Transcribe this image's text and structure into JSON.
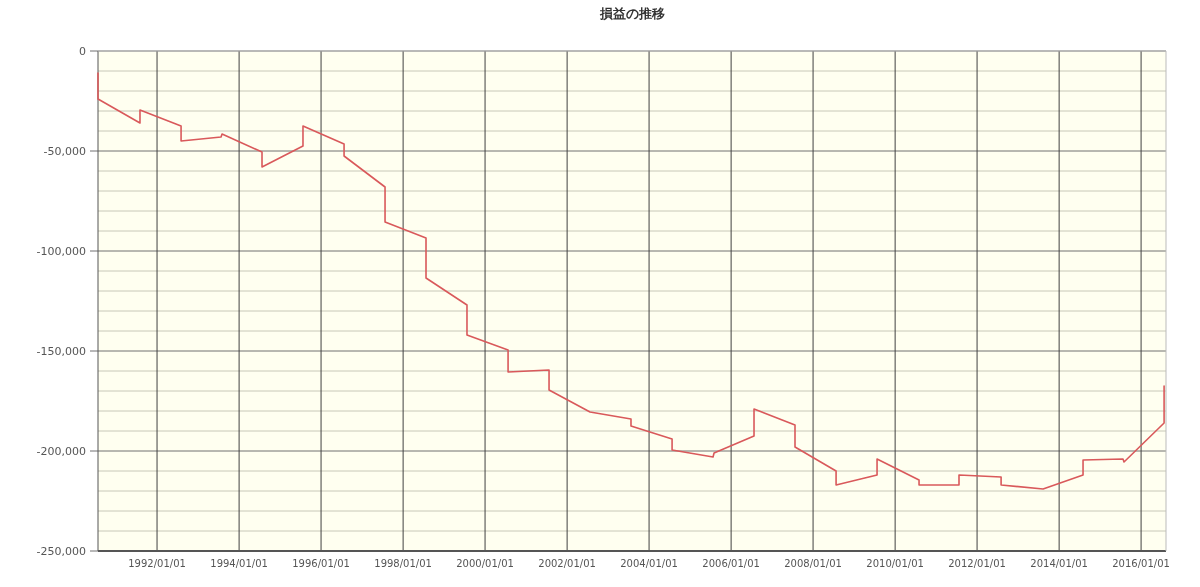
{
  "chart_data": {
    "type": "line",
    "title": "損益の推移",
    "xlim": [
      "1990-07-24",
      "2016-08-10"
    ],
    "xticks": [
      {
        "value": "1992-01-01",
        "label": "1992/01/01"
      },
      {
        "value": "1994-01-01",
        "label": "1994/01/01"
      },
      {
        "value": "1996-01-01",
        "label": "1996/01/01"
      },
      {
        "value": "1998-01-01",
        "label": "1998/01/01"
      },
      {
        "value": "2000-01-01",
        "label": "2000/01/01"
      },
      {
        "value": "2002-01-01",
        "label": "2002/01/01"
      },
      {
        "value": "2004-01-01",
        "label": "2004/01/01"
      },
      {
        "value": "2006-01-01",
        "label": "2006/01/01"
      },
      {
        "value": "2008-01-01",
        "label": "2008/01/01"
      },
      {
        "value": "2010-01-01",
        "label": "2010/01/01"
      },
      {
        "value": "2012-01-01",
        "label": "2012/01/01"
      },
      {
        "value": "2014-01-01",
        "label": "2014/01/01"
      },
      {
        "value": "2016-01-01",
        "label": "2016/01/01"
      }
    ],
    "ylim": [
      -250000,
      0
    ],
    "yticks": [
      {
        "value": -250000,
        "label": "-250,000"
      },
      {
        "value": -240000,
        "label": null
      },
      {
        "value": -230000,
        "label": null
      },
      {
        "value": -220000,
        "label": null
      },
      {
        "value": -210000,
        "label": null
      },
      {
        "value": -200000,
        "label": "-200,000"
      },
      {
        "value": -190000,
        "label": null
      },
      {
        "value": -180000,
        "label": null
      },
      {
        "value": -170000,
        "label": null
      },
      {
        "value": -160000,
        "label": null
      },
      {
        "value": -150000,
        "label": "-150,000"
      },
      {
        "value": -140000,
        "label": null
      },
      {
        "value": -130000,
        "label": null
      },
      {
        "value": -120000,
        "label": null
      },
      {
        "value": -110000,
        "label": null
      },
      {
        "value": -100000,
        "label": "-100,000"
      },
      {
        "value": -90000,
        "label": null
      },
      {
        "value": -80000,
        "label": null
      },
      {
        "value": -70000,
        "label": null
      },
      {
        "value": -60000,
        "label": null
      },
      {
        "value": -50000,
        "label": "-50,000"
      },
      {
        "value": -40000,
        "label": null
      },
      {
        "value": -30000,
        "label": null
      },
      {
        "value": -20000,
        "label": null
      },
      {
        "value": -10000,
        "label": null
      },
      0
    ],
    "grid": true,
    "series": [
      {
        "color": "#d9595b",
        "x": [
          "1990-07-24",
          "1990-07-24",
          "1991-08-02",
          "1991-08-02",
          "1992-08-02",
          "1992-08-02",
          "1993-07-24",
          "1993-08-02",
          "1994-07-24",
          "1994-07-24",
          "1995-07-24",
          "1995-07-24",
          "1996-07-24",
          "1996-07-24",
          "1997-07-24",
          "1997-07-24",
          "1998-07-24",
          "1998-07-24",
          "1999-07-24",
          "1999-07-24",
          "2000-07-24",
          "2000-07-24",
          "2001-07-24",
          "2001-07-24",
          "2002-07-24",
          "2003-07-24",
          "2003-07-24",
          "2004-07-24",
          "2004-07-24",
          "2005-07-24",
          "2005-08-02",
          "2006-07-24",
          "2006-07-24",
          "2007-07-24",
          "2007-07-24",
          "2008-07-24",
          "2008-07-24",
          "2009-07-24",
          "2009-07-24",
          "2010-08-02",
          "2010-08-02",
          "2011-07-24",
          "2011-07-24",
          "2012-08-02",
          "2012-08-02",
          "2013-08-11",
          "2014-08-02",
          "2014-08-02",
          "2015-07-24",
          "2015-08-02",
          "2016-07-24",
          "2016-07-24"
        ],
        "values": [
          -11000,
          -24000,
          -36000,
          -29500,
          -37500,
          -45000,
          -43000,
          -41500,
          -50500,
          -58000,
          -47500,
          -37500,
          -46500,
          -52500,
          -68000,
          -85500,
          -93500,
          -113500,
          -127000,
          -142000,
          -149500,
          -160500,
          -159500,
          -169500,
          -180500,
          -184000,
          -187500,
          -194000,
          -199500,
          -203000,
          -201000,
          -192500,
          -179000,
          -187000,
          -198000,
          -210000,
          -217000,
          -212000,
          -204000,
          -214500,
          -217000,
          -217000,
          -212000,
          -213000,
          -217000,
          -219000,
          -212000,
          -204500,
          -204000,
          -205500,
          -186000,
          -167500
        ]
      }
    ]
  }
}
